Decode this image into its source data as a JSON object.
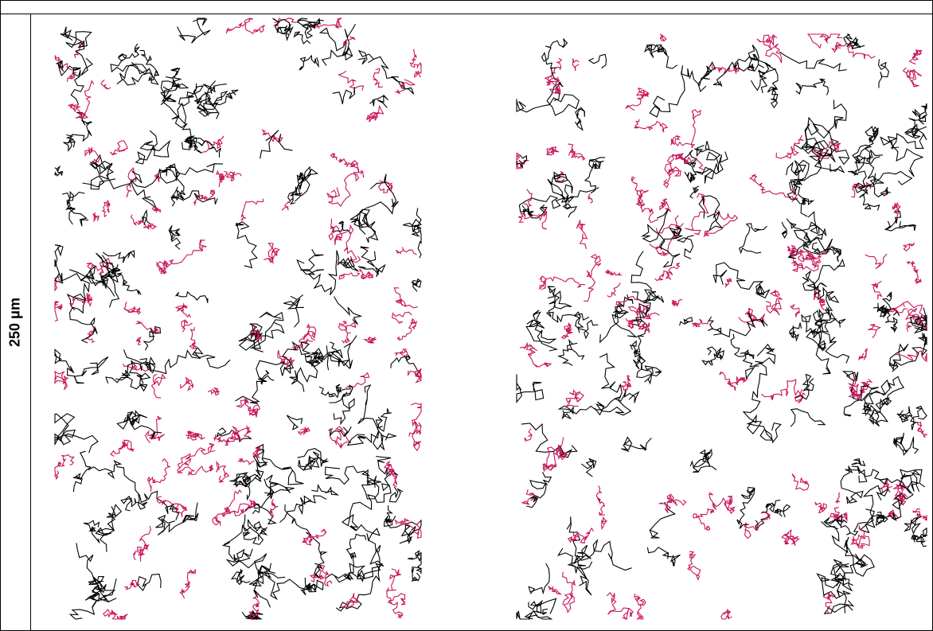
{
  "scale_label": "250 μm"
}
